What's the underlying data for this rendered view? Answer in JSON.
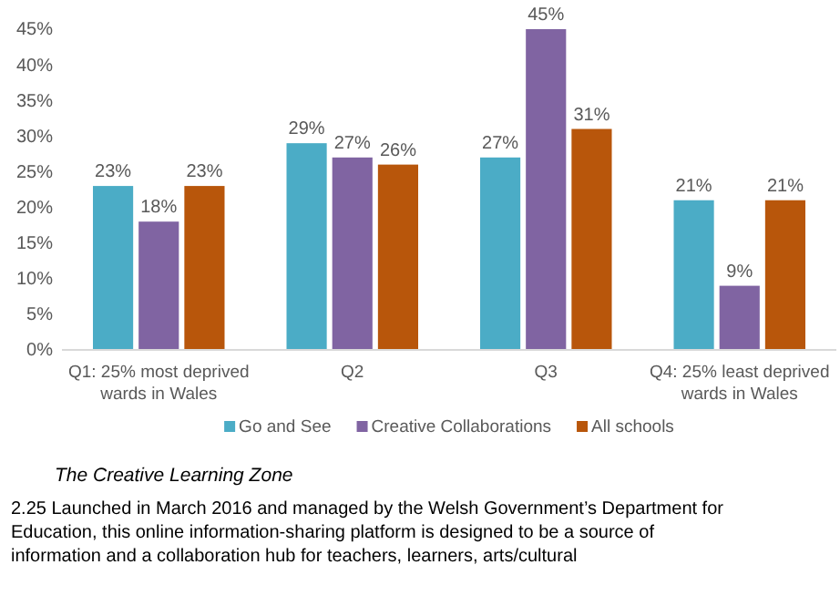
{
  "chart_data": {
    "type": "bar",
    "categories": [
      "Q1: 25% most deprived wards in Wales",
      "Q2",
      "Q3",
      "Q4: 25% least deprived wards in Wales"
    ],
    "series": [
      {
        "name": "Go and See",
        "color": "#4bacc6",
        "values": [
          23,
          29,
          27,
          21
        ]
      },
      {
        "name": "Creative Collaborations",
        "color": "#8064a2",
        "values": [
          18,
          27,
          45,
          9
        ]
      },
      {
        "name": "All schools",
        "color": "#b8560b",
        "values": [
          23,
          26,
          31,
          21
        ]
      }
    ],
    "ylim": [
      0,
      45
    ],
    "yticks": [
      {
        "value": 0,
        "label": "0%"
      },
      {
        "value": 5,
        "label": "5%"
      },
      {
        "value": 10,
        "label": "10%"
      },
      {
        "value": 15,
        "label": "15%"
      },
      {
        "value": 20,
        "label": "20%"
      },
      {
        "value": 25,
        "label": "25%"
      },
      {
        "value": 30,
        "label": "30%"
      },
      {
        "value": 35,
        "label": "35%"
      },
      {
        "value": 40,
        "label": "40%"
      },
      {
        "value": 45,
        "label": "45%"
      }
    ],
    "value_labels": [
      [
        "23%",
        "29%",
        "27%",
        "21%"
      ],
      [
        "18%",
        "27%",
        "45%",
        "9%"
      ],
      [
        "23%",
        "26%",
        "31%",
        "21%"
      ]
    ],
    "legend": "bottom",
    "grid": false,
    "annotations": [
      "The Creative Learning Zone",
      "2.25 Launched in March 2016 and managed by the Welsh Government’s Department for Education, this online information-sharing platform is designed to be a source of information and a collaboration hub for teachers, learners, arts/cultural"
    ]
  }
}
